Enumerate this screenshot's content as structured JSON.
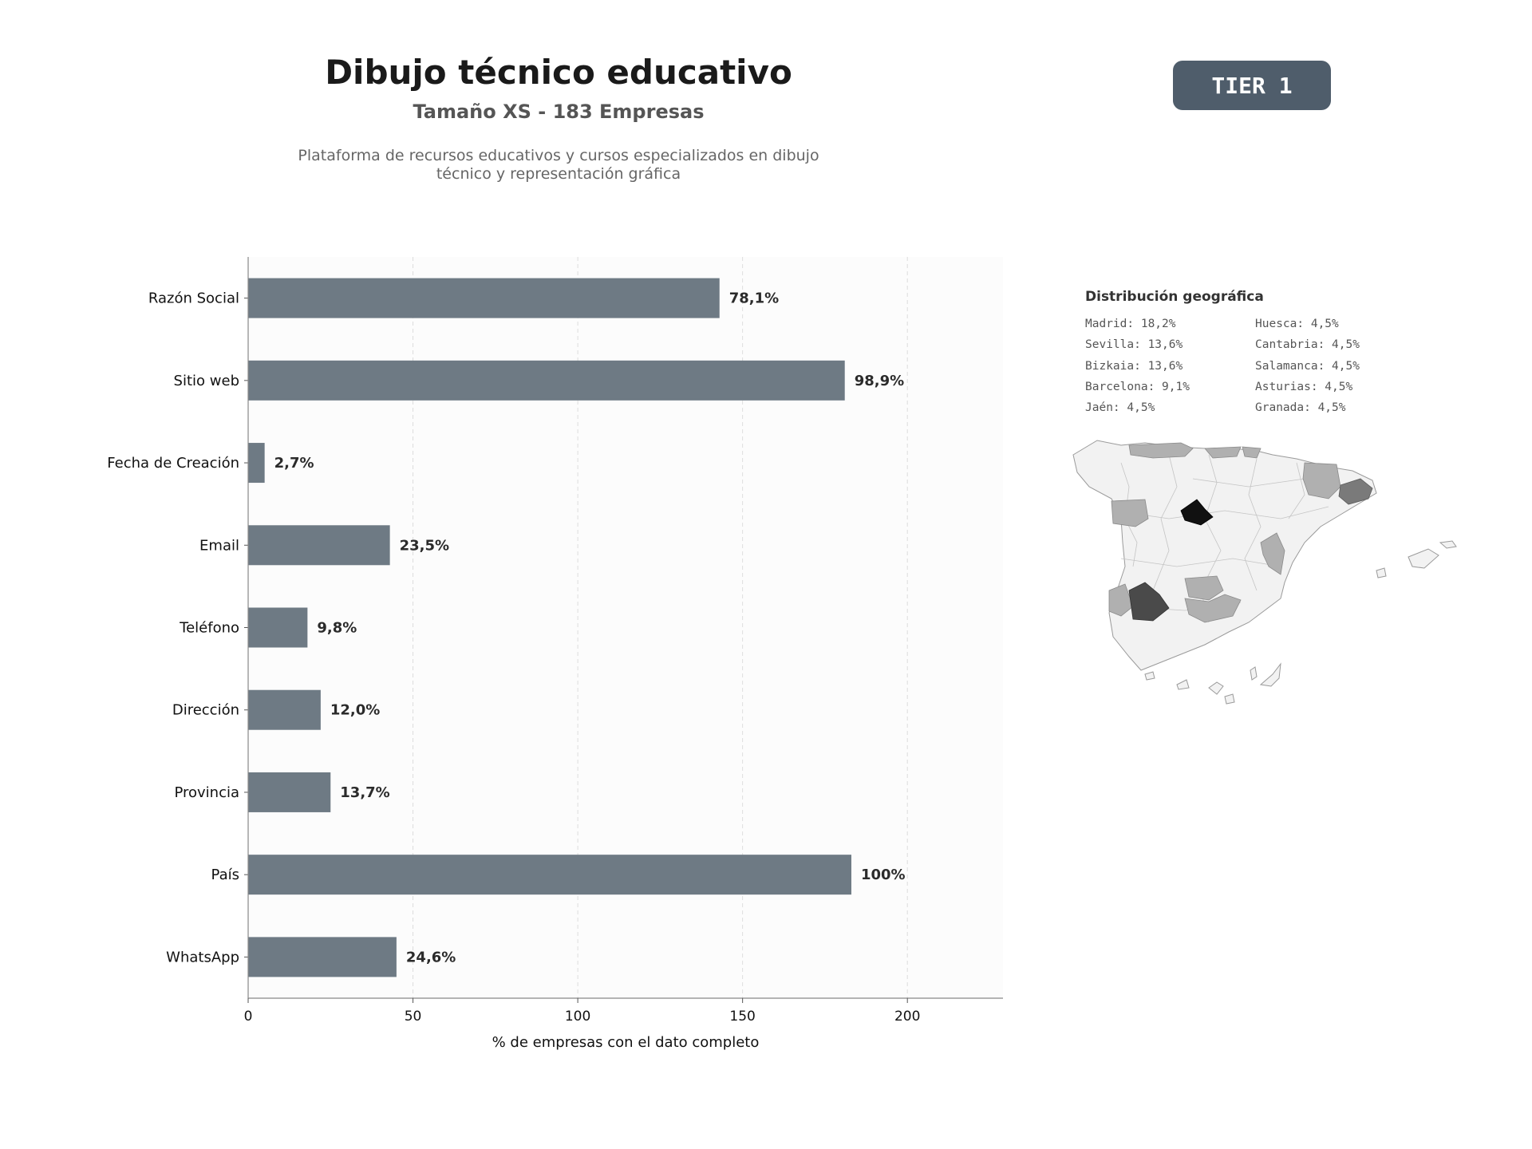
{
  "header": {
    "title": "Dibujo técnico educativo",
    "subtitle": "Tamaño XS - 183 Empresas",
    "description_line1": "Plataforma de recursos educativos y cursos especializados en dibujo",
    "description_line2": "técnico y representación gráfica",
    "tier_badge": "TIER 1"
  },
  "colors": {
    "bar": "#6e7a84",
    "plot_background": "#fcfcfc",
    "badge": "#4f5d6b",
    "map_levels": [
      "#f2f2f2",
      "#b0b0b0",
      "#7a7a7a",
      "#4a4a4a",
      "#111111"
    ]
  },
  "chart_data": {
    "type": "bar",
    "orientation": "horizontal",
    "categories": [
      "Razón Social",
      "Sitio web",
      "Fecha de Creación",
      "Email",
      "Teléfono",
      "Dirección",
      "Provincia",
      "País",
      "WhatsApp"
    ],
    "values": [
      143,
      181,
      5,
      43,
      18,
      22,
      25,
      183,
      45
    ],
    "value_labels": [
      "78,1%",
      "98,9%",
      "2,7%",
      "23,5%",
      "9,8%",
      "12,0%",
      "13,7%",
      "100%",
      "24,6%"
    ],
    "xlabel": "% de empresas con el dato completo",
    "ylabel": "",
    "xlim": [
      0,
      229
    ],
    "xticks": [
      0,
      50,
      100,
      150,
      200
    ],
    "grid": "x-dashed"
  },
  "geo": {
    "title": "Distribución geográfica",
    "entries": [
      "Madrid: 18,2%",
      "Huesca: 4,5%",
      "Sevilla: 13,6%",
      "Cantabria: 4,5%",
      "Bizkaia: 13,6%",
      "Salamanca: 4,5%",
      "Barcelona: 9,1%",
      "Asturias: 4,5%",
      "Jaén: 4,5%",
      "Granada: 4,5%"
    ]
  }
}
